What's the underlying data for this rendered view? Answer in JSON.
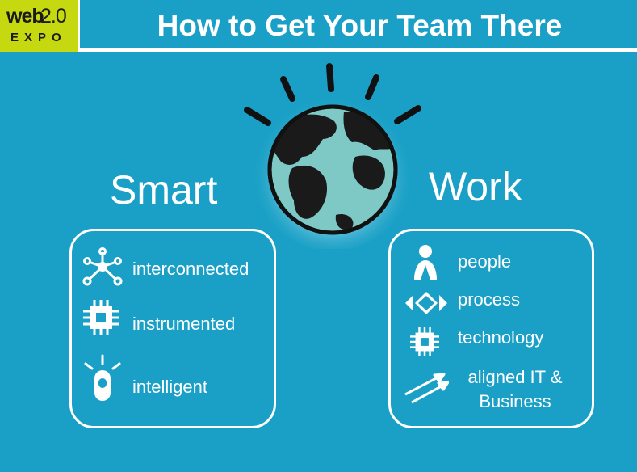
{
  "header": {
    "logo_web": "web",
    "logo_version": "2.0",
    "logo_expo": "EXPO",
    "title": "How to Get Your Team There"
  },
  "smart": {
    "heading": "Smart",
    "items": [
      {
        "label": "interconnected",
        "icon": "network-icon"
      },
      {
        "label": "instrumented",
        "icon": "chip-icon"
      },
      {
        "label": "intelligent",
        "icon": "lightbulb-icon"
      }
    ]
  },
  "work": {
    "heading": "Work",
    "items": [
      {
        "label": "people",
        "icon": "person-icon"
      },
      {
        "label": "process",
        "icon": "process-flow-icon"
      },
      {
        "label": "technology",
        "icon": "chip-icon"
      },
      {
        "label_line1": "aligned IT &",
        "label_line2": "Business",
        "icon": "arrows-icon"
      }
    ]
  },
  "colors": {
    "background": "#1aa0c6",
    "logo": "#c6d80f",
    "globe_ocean": "#7ec8c6",
    "globe_land": "#1a1a1a"
  }
}
